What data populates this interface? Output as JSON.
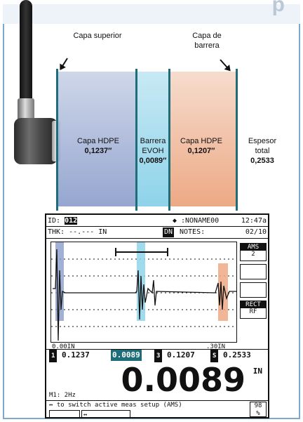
{
  "headline_fragment": "p",
  "illustration": {
    "labels": {
      "capa_superior": "Capa superior",
      "capa_barrera": "Capa de barrera",
      "hdpe1_title": "Capa HDPE",
      "hdpe1_value": "0,1237″",
      "evoh_title": "Barrera EVOH",
      "evoh_value": "0,0089″",
      "hdpe2_title": "Capa HDPE",
      "hdpe2_value": "0,1207″",
      "total_title": "Espesor total",
      "total_value": "0,2533"
    },
    "colors": {
      "hdpe1": "#8a9ccb",
      "evoh": "#8ed3ea",
      "hdpe2": "#eda985",
      "line": "#1f6d78"
    }
  },
  "device": {
    "id_label": "ID:",
    "id_value": "012",
    "filename": ":NONAME00",
    "time": "12:47a",
    "thk_label": "THK:",
    "thk_value": "--.--- IN",
    "dn_label": "DN",
    "notes_label": "NOTES:",
    "notes_count": "02/10",
    "ams_label": "AMS",
    "ams_value": "2",
    "rect_label": "RECT",
    "rf_label": "RF",
    "axis_left": "0.00IN",
    "axis_right": ".30IN",
    "meas1_index": "1",
    "meas1_value": "0.1237",
    "meas2_value": "0.0089",
    "meas3_index": "3",
    "meas3_value": "0.1207",
    "meas_s_index": "S",
    "meas_s_value": "0.2533",
    "mode": "M1: 2Hz",
    "main_value": "0.0089",
    "main_unit": "IN",
    "help_text": "↔ to switch active meas setup (AMS)",
    "help_icon": "↔",
    "battery_value": "98",
    "battery_unit": "%"
  }
}
